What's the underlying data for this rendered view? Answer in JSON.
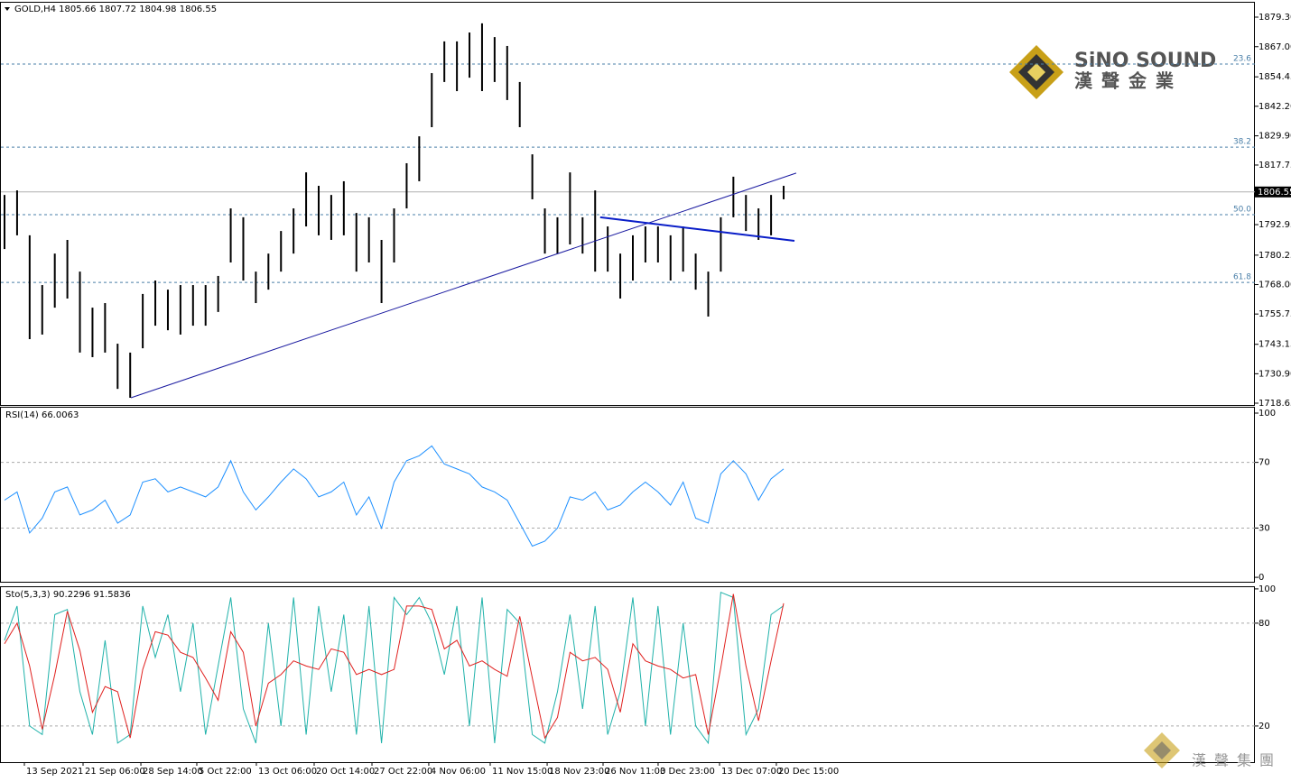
{
  "chart_data": [
    {
      "type": "ohlc",
      "title": "GOLD,H4  1805.66 1807.72 1804.98 1806.55",
      "color": "#000000",
      "high": [
        1805.3,
        1807.2,
        1788.5,
        1767.8,
        1780.9,
        1786.6,
        1773.4,
        1758.4,
        1760.3,
        1743.4,
        1739.7,
        1764.1,
        1769.7,
        1765.9,
        1767.8,
        1767.8,
        1767.8,
        1771.6,
        1799.7,
        1796.0,
        1773.4,
        1780.9,
        1790.3,
        1799.7,
        1814.7,
        1809.1,
        1805.3,
        1811.0,
        1797.8,
        1796.0,
        1786.6,
        1799.7,
        1818.5,
        1829.7,
        1856.0,
        1869.2,
        1869.2,
        1872.9,
        1876.7,
        1871.0,
        1867.3,
        1852.3,
        1822.2,
        1799.7,
        1796.0,
        1814.7,
        1796.0,
        1807.2,
        1792.2,
        1780.9,
        1788.5,
        1792.2,
        1792.2,
        1788.5,
        1792.2,
        1780.9,
        1773.4,
        1796.0,
        1812.9,
        1805.3,
        1799.7,
        1805.3,
        1809.1
      ],
      "low": [
        1782.8,
        1788.5,
        1745.3,
        1747.2,
        1758.4,
        1762.2,
        1739.7,
        1737.8,
        1739.7,
        1724.6,
        1720.9,
        1741.5,
        1750.9,
        1749.0,
        1747.2,
        1750.9,
        1750.9,
        1756.6,
        1777.2,
        1769.7,
        1760.3,
        1765.9,
        1773.4,
        1780.9,
        1792.2,
        1788.5,
        1786.6,
        1788.5,
        1773.4,
        1777.2,
        1760.3,
        1777.2,
        1799.7,
        1811.0,
        1833.5,
        1852.3,
        1848.5,
        1854.1,
        1848.5,
        1852.3,
        1844.8,
        1833.5,
        1803.5,
        1780.9,
        1780.9,
        1784.7,
        1780.9,
        1773.4,
        1773.4,
        1762.2,
        1769.7,
        1777.2,
        1777.2,
        1769.7,
        1773.4,
        1765.9,
        1754.7,
        1773.4,
        1796.0,
        1790.3,
        1786.6,
        1788.5,
        1803.5
      ],
      "xlim": [
        -0.36,
        99.5
      ],
      "ylim": [
        1717.9,
        1885.3
      ],
      "yticks": [
        {
          "value": 1879.3,
          "label": "1879.30"
        },
        {
          "value": 1867.0,
          "label": "1867.00"
        },
        {
          "value": 1854.45,
          "label": "1854.45"
        },
        {
          "value": 1842.2,
          "label": "1842.20"
        },
        {
          "value": 1829.9,
          "label": "1829.90"
        },
        {
          "value": 1817.75,
          "label": "1817.75"
        },
        {
          "value": 1792.95,
          "label": "1792.95"
        },
        {
          "value": 1780.25,
          "label": "1780.25"
        },
        {
          "value": 1768.0,
          "label": "1768.00"
        },
        {
          "value": 1755.75,
          "label": "1755.75"
        },
        {
          "value": 1743.15,
          "label": "1743.15"
        },
        {
          "value": 1730.9,
          "label": "1730.90"
        },
        {
          "value": 1718.65,
          "label": "1718.65"
        }
      ],
      "xticks": [
        {
          "value": 1.58,
          "label": "13 Sep 2021"
        },
        {
          "value": 6.25,
          "label": "21 Sep 06:00"
        },
        {
          "value": 10.85,
          "label": "28 Sep 14:00"
        },
        {
          "value": 15.3,
          "label": "5 Oct 22:00"
        },
        {
          "value": 20.04,
          "label": "13 Oct 06:00"
        },
        {
          "value": 24.64,
          "label": "20 Oct 14:00"
        },
        {
          "value": 29.24,
          "label": "27 Oct 22:00"
        },
        {
          "value": 33.76,
          "label": "4 Nov 06:00"
        },
        {
          "value": 38.65,
          "label": "11 Nov 15:00"
        },
        {
          "value": 43.18,
          "label": "18 Nov 23:00"
        },
        {
          "value": 47.63,
          "label": "26 Nov 11:00"
        },
        {
          "value": 52.01,
          "label": "3 Dec 23:00"
        },
        {
          "value": 56.9,
          "label": "13 Dec 07:00"
        },
        {
          "value": 61.42,
          "label": "20 Dec 15:00"
        }
      ],
      "last_price": {
        "value": 1806.55,
        "label": "1806.55"
      },
      "fib_levels": [
        {
          "value": 1859.8,
          "label": "23.6"
        },
        {
          "value": 1825.2,
          "label": "38.2"
        },
        {
          "value": 1797.1,
          "label": "50.0"
        },
        {
          "value": 1768.9,
          "label": "61.8"
        }
      ],
      "trendlines": [
        {
          "from": [
            10.06,
            1720.9
          ],
          "to": [
            63.0,
            1814.4
          ],
          "color": "#1a1aa0",
          "width": 1
        },
        {
          "from": [
            47.4,
            1796.0
          ],
          "to": [
            62.86,
            1786.2
          ],
          "color": "#0a1ec8",
          "width": 2
        }
      ]
    },
    {
      "type": "line",
      "title": "RSI(14) 66.0063",
      "color": "#1e90ff",
      "values": [
        47,
        52,
        27,
        36,
        52,
        55,
        38,
        41,
        47,
        33,
        38,
        58,
        60,
        52,
        55,
        52,
        49,
        55,
        71,
        52,
        41,
        49,
        58,
        66,
        60,
        49,
        52,
        58,
        38,
        49,
        30,
        58,
        71,
        74,
        80,
        69,
        66,
        63,
        55,
        52,
        47,
        33,
        19,
        22,
        30,
        49,
        47,
        52,
        41,
        44,
        52,
        58,
        52,
        44,
        58,
        36,
        33,
        63,
        71,
        63,
        47,
        60,
        66.0063
      ],
      "ylim": [
        -2.7,
        103.3
      ],
      "yticks": [
        100,
        70,
        30,
        0
      ],
      "levels": [
        70,
        30
      ]
    },
    {
      "type": "line",
      "title": "Sto(5,3,3) 90.2296 91.5836",
      "series": [
        {
          "color": "#20b2aa",
          "values": [
            70,
            90,
            20,
            15,
            85,
            88,
            40,
            15,
            70,
            10,
            15,
            90,
            60,
            85,
            40,
            80,
            15,
            55,
            95,
            30,
            10,
            80,
            20,
            95,
            15,
            90,
            40,
            85,
            15,
            90,
            10,
            95,
            85,
            95,
            80,
            50,
            90,
            20,
            95,
            10,
            88,
            80,
            15,
            10,
            40,
            85,
            30,
            90,
            15,
            40,
            95,
            20,
            90,
            15,
            80,
            20,
            10,
            98,
            95,
            15,
            30,
            85,
            90.2296
          ]
        },
        {
          "color": "#e0201e",
          "values": [
            68,
            80,
            55,
            18,
            50,
            87,
            64,
            28,
            43,
            40,
            13,
            53,
            75,
            73,
            63,
            60,
            48,
            35,
            75,
            63,
            20,
            45,
            50,
            58,
            55,
            53,
            65,
            63,
            50,
            53,
            50,
            53,
            90,
            90,
            88,
            65,
            70,
            55,
            58,
            53,
            49,
            84,
            48,
            13,
            25,
            63,
            58,
            60,
            53,
            28,
            68,
            58,
            55,
            53,
            48,
            50,
            15,
            54,
            97,
            55,
            23,
            58,
            91.5836
          ]
        }
      ],
      "ylim": [
        -1.1,
        101
      ],
      "yticks": [
        100,
        80,
        20
      ],
      "levels": [
        80,
        20
      ]
    }
  ],
  "logo": {
    "name": "SiNO SOUND",
    "chinese": "漢聲金業"
  },
  "footer_logo": "漢聲集團"
}
